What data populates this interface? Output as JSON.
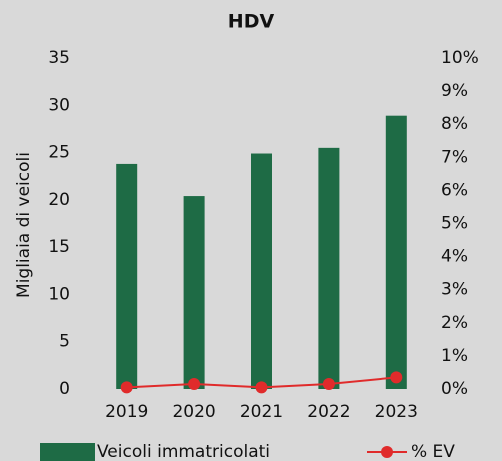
{
  "chart_data": {
    "type": "bar",
    "title": "HDV",
    "y_label": "Migliaia di veicoli",
    "categories": [
      "2019",
      "2020",
      "2021",
      "2022",
      "2023"
    ],
    "series": [
      {
        "name": "Veicoli immatricolati",
        "type": "bar",
        "color": "#1e6b45",
        "axis": "y",
        "values": [
          23.8,
          20.4,
          24.9,
          25.5,
          28.9
        ]
      },
      {
        "name": "% EV",
        "type": "line",
        "color": "#e02b2b",
        "axis": "y2",
        "values": [
          0.05,
          0.15,
          0.05,
          0.15,
          0.35
        ]
      }
    ],
    "ylim": [
      0,
      35
    ],
    "yticks": [
      0,
      5,
      10,
      15,
      20,
      25,
      30,
      35
    ],
    "y2lim": [
      0,
      10
    ],
    "y2ticks": [
      {
        "value": 0,
        "label": "0%"
      },
      {
        "value": 1,
        "label": "1%"
      },
      {
        "value": 2,
        "label": "2%"
      },
      {
        "value": 3,
        "label": "3%"
      },
      {
        "value": 4,
        "label": "4%"
      },
      {
        "value": 5,
        "label": "5%"
      },
      {
        "value": 6,
        "label": "6%"
      },
      {
        "value": 7,
        "label": "7%"
      },
      {
        "value": 8,
        "label": "8%"
      },
      {
        "value": 9,
        "label": "9%"
      },
      {
        "value": 10,
        "label": "10%"
      }
    ],
    "legend": "bottom"
  }
}
